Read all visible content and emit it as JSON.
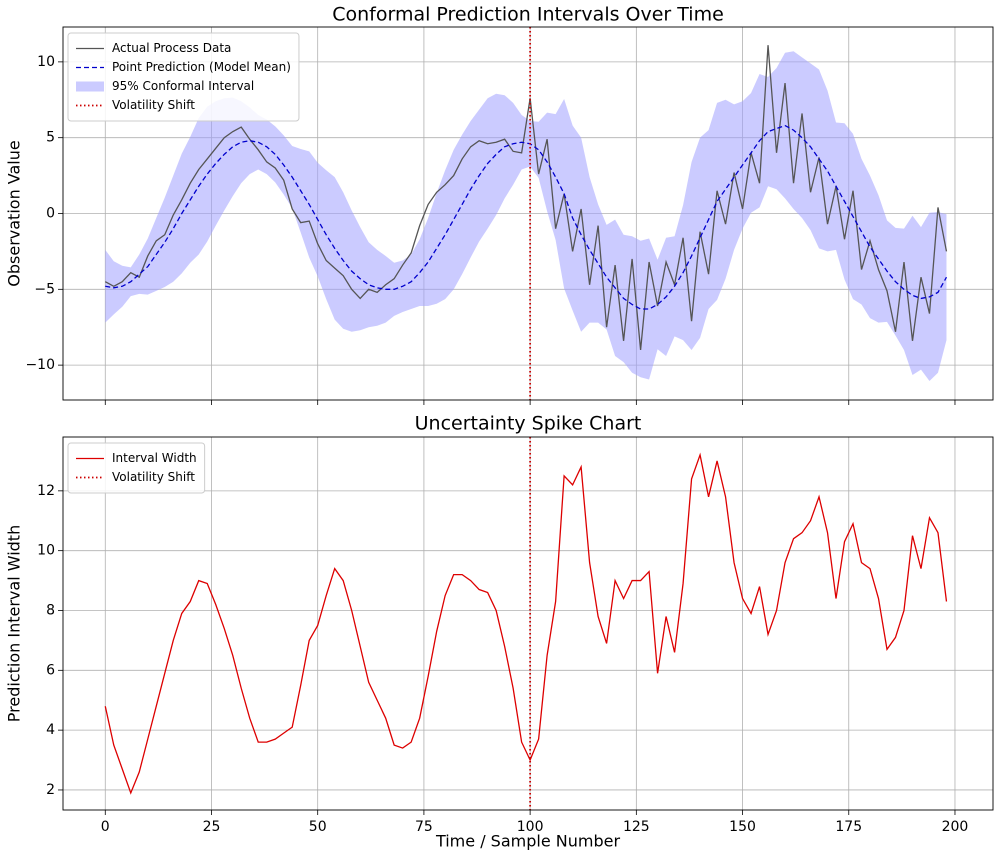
{
  "chart_data": [
    {
      "type": "line",
      "title": "Conformal Prediction Intervals Over Time",
      "ylabel": "Observation Value",
      "xlim": [
        -9.95,
        208.95
      ],
      "ylim": [
        -12.3,
        12.3
      ],
      "xticks": [
        0,
        25,
        50,
        75,
        100,
        125,
        150,
        175,
        200
      ],
      "yticks": [
        {
          "value": -10,
          "label": "−10"
        },
        {
          "value": -5,
          "label": "−5"
        },
        0,
        5,
        10
      ],
      "grid": true,
      "legend": "upper left",
      "x": [
        0,
        2,
        4,
        6,
        8,
        10,
        12,
        14,
        16,
        18,
        20,
        22,
        24,
        26,
        28,
        30,
        32,
        34,
        36,
        38,
        40,
        42,
        44,
        46,
        48,
        50,
        52,
        54,
        56,
        58,
        60,
        62,
        64,
        66,
        68,
        70,
        72,
        74,
        76,
        78,
        80,
        82,
        84,
        86,
        88,
        90,
        92,
        94,
        96,
        98,
        100,
        102,
        104,
        106,
        108,
        110,
        112,
        114,
        116,
        118,
        120,
        122,
        124,
        126,
        128,
        130,
        132,
        134,
        136,
        138,
        140,
        142,
        144,
        146,
        148,
        150,
        152,
        154,
        156,
        158,
        160,
        162,
        164,
        166,
        168,
        170,
        172,
        174,
        176,
        178,
        180,
        182,
        184,
        186,
        188,
        190,
        192,
        194,
        196,
        198
      ],
      "band": {
        "name": "95% Conformal Interval",
        "color": "#a0a0ff",
        "upper": [
          -2.4,
          -3.15,
          -3.45,
          -3.55,
          -2.7,
          -1.65,
          -0.3,
          1.05,
          2.5,
          3.95,
          5.05,
          6.3,
          7.05,
          7.4,
          7.6,
          7.65,
          7.4,
          7.0,
          6.5,
          6.2,
          5.75,
          5.15,
          4.45,
          4.25,
          4.1,
          3.35,
          2.85,
          2.4,
          1.4,
          0.2,
          -0.9,
          -1.9,
          -2.4,
          -2.8,
          -3.25,
          -3.1,
          -2.7,
          -1.7,
          -0.3,
          1.35,
          2.85,
          4.2,
          5.2,
          6.1,
          6.85,
          7.6,
          7.9,
          7.8,
          7.3,
          6.5,
          6.1,
          6.05,
          6.65,
          6.55,
          7.55,
          5.8,
          5.0,
          2.4,
          0.6,
          -0.75,
          -0.4,
          -1.4,
          -1.5,
          -1.8,
          -1.65,
          -3.05,
          -1.6,
          -1.5,
          0.55,
          3.4,
          5.0,
          5.5,
          7.3,
          7.5,
          7.2,
          7.4,
          7.95,
          9.2,
          9.0,
          9.6,
          10.6,
          10.7,
          10.3,
          9.9,
          9.5,
          8.1,
          6.0,
          5.95,
          5.25,
          3.6,
          2.5,
          1.2,
          -0.45,
          -0.95,
          -1.0,
          -0.15,
          -0.9,
          0.05,
          0.1,
          -0.05
        ],
        "lower": [
          -7.2,
          -6.65,
          -6.15,
          -5.45,
          -5.3,
          -5.35,
          -5.1,
          -4.85,
          -4.5,
          -3.95,
          -3.25,
          -2.7,
          -1.85,
          -0.8,
          0.2,
          1.15,
          2.0,
          2.6,
          2.9,
          2.6,
          2.05,
          1.25,
          0.35,
          -1.25,
          -2.9,
          -4.15,
          -5.65,
          -7.0,
          -7.6,
          -7.8,
          -7.7,
          -7.5,
          -7.4,
          -7.2,
          -6.75,
          -6.5,
          -6.3,
          -6.1,
          -6.1,
          -5.95,
          -5.65,
          -5.0,
          -4.0,
          -2.9,
          -1.85,
          -1.0,
          -0.1,
          1.0,
          1.9,
          2.9,
          3.1,
          2.35,
          0.15,
          -1.75,
          -4.95,
          -6.4,
          -7.8,
          -7.2,
          -7.2,
          -7.65,
          -9.4,
          -9.8,
          -10.5,
          -10.8,
          -10.95,
          -8.95,
          -9.4,
          -8.1,
          -8.35,
          -9.0,
          -8.2,
          -6.3,
          -5.7,
          -4.3,
          -2.4,
          -1.0,
          0.05,
          0.4,
          1.8,
          1.6,
          1.0,
          0.3,
          -0.3,
          -1.1,
          -2.3,
          -2.5,
          -2.4,
          -4.35,
          -5.65,
          -6.0,
          -6.9,
          -7.2,
          -7.15,
          -8.05,
          -9.0,
          -10.65,
          -10.3,
          -11.05,
          -10.5,
          -8.35
        ]
      },
      "series": [
        {
          "name": "Actual Process Data",
          "color": "#555555",
          "style": "solid",
          "values": [
            -4.5,
            -4.8,
            -4.5,
            -3.9,
            -4.2,
            -2.8,
            -1.8,
            -1.4,
            -0.1,
            0.9,
            2.0,
            2.9,
            3.6,
            4.3,
            5.0,
            5.4,
            5.7,
            4.9,
            4.2,
            3.4,
            3.0,
            2.2,
            0.3,
            -0.6,
            -0.5,
            -2.0,
            -3.1,
            -3.6,
            -4.1,
            -5.0,
            -5.6,
            -5.0,
            -5.2,
            -4.7,
            -4.3,
            -3.4,
            -2.6,
            -0.8,
            0.6,
            1.4,
            1.9,
            2.5,
            3.6,
            4.4,
            4.8,
            4.6,
            4.7,
            4.9,
            4.1,
            4.0,
            7.6,
            2.6,
            4.9,
            -1.0,
            1.3,
            -2.5,
            0.3,
            -4.7,
            -0.8,
            -7.5,
            -3.4,
            -8.4,
            -3.0,
            -9.0,
            -3.2,
            -6.1,
            -3.2,
            -4.7,
            -1.6,
            -7.1,
            -1.2,
            -4.0,
            1.5,
            -0.7,
            2.7,
            0.3,
            4.0,
            2.0,
            11.1,
            4.0,
            8.6,
            2.0,
            6.6,
            1.4,
            3.7,
            -0.7,
            1.8,
            -1.7,
            1.5,
            -3.7,
            -1.8,
            -3.7,
            -5.1,
            -7.8,
            -3.2,
            -8.4,
            -4.2,
            -6.6,
            0.4,
            -2.5
          ]
        },
        {
          "name": "Point Prediction (Model Mean)",
          "color": "#0000cc",
          "style": "dashed",
          "values": [
            -4.8,
            -4.9,
            -4.8,
            -4.5,
            -4.0,
            -3.5,
            -2.7,
            -1.9,
            -1.0,
            0.0,
            0.9,
            1.8,
            2.6,
            3.3,
            3.9,
            4.4,
            4.7,
            4.8,
            4.7,
            4.4,
            3.9,
            3.2,
            2.4,
            1.5,
            0.6,
            -0.4,
            -1.4,
            -2.3,
            -3.1,
            -3.8,
            -4.3,
            -4.7,
            -4.9,
            -5.0,
            -5.0,
            -4.8,
            -4.5,
            -3.9,
            -3.2,
            -2.3,
            -1.4,
            -0.4,
            0.6,
            1.6,
            2.5,
            3.3,
            3.9,
            4.4,
            4.6,
            4.7,
            4.6,
            4.2,
            3.4,
            2.4,
            1.3,
            -0.3,
            -1.4,
            -2.4,
            -3.3,
            -4.2,
            -4.9,
            -5.6,
            -6.0,
            -6.3,
            -6.3,
            -6.0,
            -5.5,
            -4.8,
            -3.9,
            -2.8,
            -1.6,
            -0.4,
            0.8,
            1.6,
            2.4,
            3.2,
            4.0,
            4.8,
            5.4,
            5.6,
            5.8,
            5.5,
            5.0,
            4.4,
            3.6,
            2.8,
            1.8,
            0.8,
            -0.2,
            -1.2,
            -2.2,
            -3.0,
            -3.8,
            -4.5,
            -5.0,
            -5.4,
            -5.6,
            -5.5,
            -5.2,
            -4.2
          ]
        }
      ],
      "vline": {
        "name": "Volatility Shift",
        "x": 100,
        "color": "#cc0000",
        "style": "dotted"
      }
    },
    {
      "type": "line",
      "title": "Uncertainty Spike Chart",
      "xlabel": "Time / Sample Number",
      "ylabel": "Prediction Interval Width",
      "xlim": [
        -9.95,
        208.95
      ],
      "ylim": [
        1.33,
        13.8
      ],
      "xticks": [
        0,
        25,
        50,
        75,
        100,
        125,
        150,
        175,
        200
      ],
      "yticks": [
        2,
        4,
        6,
        8,
        10,
        12
      ],
      "grid": true,
      "legend": "upper left",
      "x": [
        0,
        2,
        4,
        6,
        8,
        10,
        12,
        14,
        16,
        18,
        20,
        22,
        24,
        26,
        28,
        30,
        32,
        34,
        36,
        38,
        40,
        42,
        44,
        46,
        48,
        50,
        52,
        54,
        56,
        58,
        60,
        62,
        64,
        66,
        68,
        70,
        72,
        74,
        76,
        78,
        80,
        82,
        84,
        86,
        88,
        90,
        92,
        94,
        96,
        98,
        100,
        102,
        104,
        106,
        108,
        110,
        112,
        114,
        116,
        118,
        120,
        122,
        124,
        126,
        128,
        130,
        132,
        134,
        136,
        138,
        140,
        142,
        144,
        146,
        148,
        150,
        152,
        154,
        156,
        158,
        160,
        162,
        164,
        166,
        168,
        170,
        172,
        174,
        176,
        178,
        180,
        182,
        184,
        186,
        188,
        190,
        192,
        194,
        196,
        198
      ],
      "series": [
        {
          "name": "Interval Width",
          "color": "#dd0000",
          "style": "solid",
          "values": [
            4.8,
            3.5,
            2.7,
            1.9,
            2.6,
            3.7,
            4.8,
            5.9,
            7.0,
            7.9,
            8.3,
            9.0,
            8.9,
            8.2,
            7.4,
            6.5,
            5.4,
            4.4,
            3.6,
            3.6,
            3.7,
            3.9,
            4.1,
            5.5,
            7.0,
            7.5,
            8.5,
            9.4,
            9.0,
            8.0,
            6.8,
            5.6,
            5.0,
            4.4,
            3.5,
            3.4,
            3.6,
            4.4,
            5.8,
            7.3,
            8.5,
            9.2,
            9.2,
            9.0,
            8.7,
            8.6,
            8.0,
            6.8,
            5.4,
            3.6,
            3.0,
            3.7,
            6.5,
            8.3,
            12.5,
            12.2,
            12.8,
            9.6,
            7.8,
            6.9,
            9.0,
            8.4,
            9.0,
            9.0,
            9.3,
            5.9,
            7.8,
            6.6,
            8.9,
            12.4,
            13.2,
            11.8,
            13.0,
            11.8,
            9.6,
            8.4,
            7.9,
            8.8,
            7.2,
            8.0,
            9.6,
            10.4,
            10.6,
            11.0,
            11.8,
            10.6,
            8.4,
            10.3,
            10.9,
            9.6,
            9.4,
            8.4,
            6.7,
            7.1,
            8.0,
            10.5,
            9.4,
            11.1,
            10.6,
            8.3
          ]
        }
      ],
      "vline": {
        "name": "Volatility Shift",
        "x": 100,
        "color": "#cc0000",
        "style": "dotted"
      }
    }
  ]
}
